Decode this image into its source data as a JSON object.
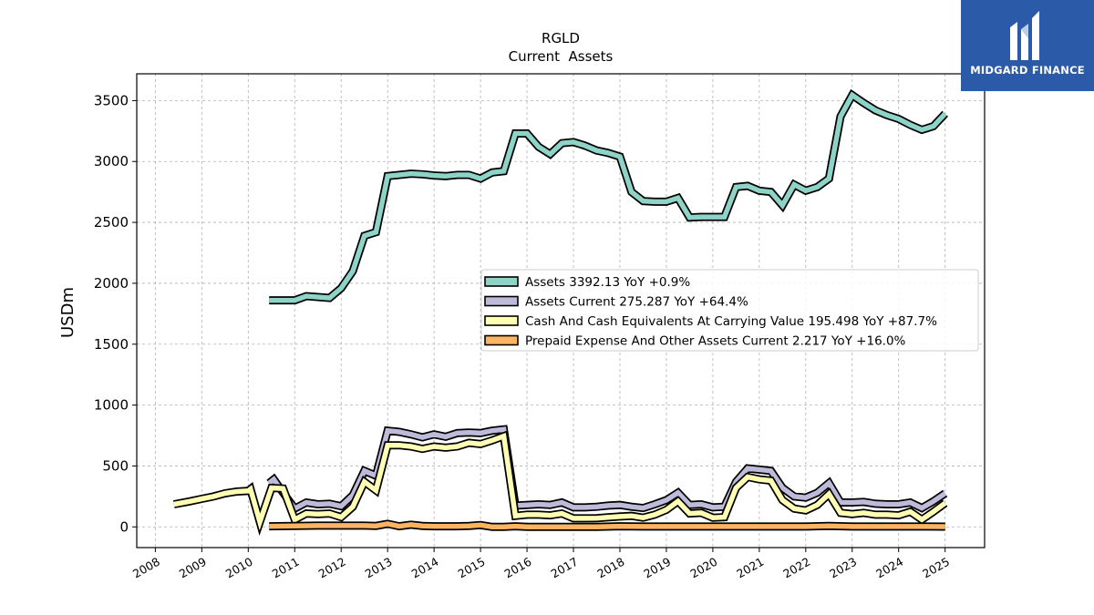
{
  "chart_data": {
    "type": "line",
    "title": "RGLD",
    "subtitle": "Current  Assets",
    "ylabel": "USDm",
    "xlabel": "",
    "ylim": [
      -170,
      3720
    ],
    "yticks": [
      0,
      500,
      1000,
      1500,
      2000,
      2500,
      3000,
      3500
    ],
    "xlim": [
      2007.6,
      2025.85
    ],
    "xticks": [
      2008,
      2009,
      2010,
      2011,
      2012,
      2013,
      2014,
      2015,
      2016,
      2017,
      2018,
      2019,
      2020,
      2021,
      2022,
      2023,
      2024,
      2025
    ],
    "grid": true,
    "legend_position": "center-right",
    "series": [
      {
        "name": "Assets",
        "legend": "Assets  3392.13 YoY +0.9%",
        "color": "#8dd3c7",
        "points": [
          [
            2010.45,
            1860
          ],
          [
            2011.0,
            1860
          ],
          [
            2011.25,
            1895
          ],
          [
            2011.75,
            1880
          ],
          [
            2012.0,
            1960
          ],
          [
            2012.25,
            2100
          ],
          [
            2012.5,
            2390
          ],
          [
            2012.75,
            2420
          ],
          [
            2013.0,
            2880
          ],
          [
            2013.25,
            2890
          ],
          [
            2013.5,
            2900
          ],
          [
            2013.75,
            2895
          ],
          [
            2014.0,
            2885
          ],
          [
            2014.25,
            2880
          ],
          [
            2014.5,
            2890
          ],
          [
            2014.75,
            2890
          ],
          [
            2015.0,
            2860
          ],
          [
            2015.25,
            2910
          ],
          [
            2015.5,
            2920
          ],
          [
            2015.75,
            3230
          ],
          [
            2016.0,
            3230
          ],
          [
            2016.25,
            3120
          ],
          [
            2016.5,
            3060
          ],
          [
            2016.75,
            3150
          ],
          [
            2017.0,
            3160
          ],
          [
            2017.25,
            3130
          ],
          [
            2017.5,
            3090
          ],
          [
            2017.75,
            3070
          ],
          [
            2018.0,
            3040
          ],
          [
            2018.25,
            2750
          ],
          [
            2018.5,
            2675
          ],
          [
            2018.75,
            2670
          ],
          [
            2019.0,
            2670
          ],
          [
            2019.25,
            2700
          ],
          [
            2019.5,
            2540
          ],
          [
            2019.75,
            2545
          ],
          [
            2020.0,
            2545
          ],
          [
            2020.25,
            2545
          ],
          [
            2020.5,
            2790
          ],
          [
            2020.75,
            2800
          ],
          [
            2021.0,
            2760
          ],
          [
            2021.25,
            2750
          ],
          [
            2021.5,
            2640
          ],
          [
            2021.75,
            2810
          ],
          [
            2022.0,
            2760
          ],
          [
            2022.25,
            2790
          ],
          [
            2022.5,
            2860
          ],
          [
            2022.75,
            3370
          ],
          [
            2023.0,
            3545
          ],
          [
            2023.25,
            3480
          ],
          [
            2023.5,
            3420
          ],
          [
            2023.75,
            3380
          ],
          [
            2024.0,
            3350
          ],
          [
            2024.25,
            3300
          ],
          [
            2024.5,
            3260
          ],
          [
            2024.75,
            3290
          ],
          [
            2025.0,
            3392
          ]
        ]
      },
      {
        "name": "Assets Current",
        "legend": "Assets Current  275.287 YoY +64.4%",
        "color": "#bebada",
        "points": [
          [
            2010.45,
            360
          ],
          [
            2010.55,
            390
          ],
          [
            2010.75,
            280
          ],
          [
            2011.0,
            150
          ],
          [
            2011.25,
            200
          ],
          [
            2011.5,
            185
          ],
          [
            2011.75,
            190
          ],
          [
            2012.0,
            170
          ],
          [
            2012.25,
            260
          ],
          [
            2012.5,
            460
          ],
          [
            2012.75,
            420
          ],
          [
            2013.0,
            790
          ],
          [
            2013.25,
            780
          ],
          [
            2013.5,
            760
          ],
          [
            2013.75,
            735
          ],
          [
            2014.0,
            760
          ],
          [
            2014.25,
            740
          ],
          [
            2014.5,
            770
          ],
          [
            2014.75,
            775
          ],
          [
            2015.0,
            770
          ],
          [
            2015.25,
            790
          ],
          [
            2015.5,
            800
          ],
          [
            2015.75,
            175
          ],
          [
            2016.0,
            180
          ],
          [
            2016.25,
            185
          ],
          [
            2016.5,
            180
          ],
          [
            2016.75,
            200
          ],
          [
            2017.0,
            160
          ],
          [
            2017.25,
            160
          ],
          [
            2017.5,
            165
          ],
          [
            2017.75,
            175
          ],
          [
            2018.0,
            180
          ],
          [
            2018.25,
            165
          ],
          [
            2018.5,
            155
          ],
          [
            2018.75,
            185
          ],
          [
            2019.0,
            220
          ],
          [
            2019.25,
            280
          ],
          [
            2019.5,
            180
          ],
          [
            2019.75,
            185
          ],
          [
            2020.0,
            160
          ],
          [
            2020.25,
            165
          ],
          [
            2020.5,
            370
          ],
          [
            2020.75,
            480
          ],
          [
            2021.0,
            470
          ],
          [
            2021.25,
            460
          ],
          [
            2021.5,
            320
          ],
          [
            2021.75,
            250
          ],
          [
            2022.0,
            240
          ],
          [
            2022.25,
            280
          ],
          [
            2022.5,
            360
          ],
          [
            2022.75,
            200
          ],
          [
            2023.0,
            200
          ],
          [
            2023.25,
            205
          ],
          [
            2023.5,
            190
          ],
          [
            2023.75,
            185
          ],
          [
            2024.0,
            185
          ],
          [
            2024.25,
            200
          ],
          [
            2024.5,
            155
          ],
          [
            2024.75,
            210
          ],
          [
            2025.0,
            275
          ]
        ]
      },
      {
        "name": "Cash And Cash Equivalents At Carrying Value",
        "legend": "Cash And Cash Equivalents At Carrying Value  195.498 YoY +87.7%",
        "color": "#ffffb3",
        "points": [
          [
            2008.4,
            185
          ],
          [
            2008.75,
            210
          ],
          [
            2009.0,
            230
          ],
          [
            2009.25,
            250
          ],
          [
            2009.5,
            275
          ],
          [
            2009.75,
            290
          ],
          [
            2010.0,
            295
          ],
          [
            2010.05,
            310
          ],
          [
            2010.25,
            40
          ],
          [
            2010.5,
            320
          ],
          [
            2010.75,
            315
          ],
          [
            2011.0,
            60
          ],
          [
            2011.25,
            110
          ],
          [
            2011.5,
            105
          ],
          [
            2011.75,
            110
          ],
          [
            2012.0,
            80
          ],
          [
            2012.25,
            165
          ],
          [
            2012.5,
            370
          ],
          [
            2012.75,
            300
          ],
          [
            2013.0,
            670
          ],
          [
            2013.25,
            670
          ],
          [
            2013.5,
            660
          ],
          [
            2013.75,
            640
          ],
          [
            2014.0,
            660
          ],
          [
            2014.25,
            650
          ],
          [
            2014.5,
            660
          ],
          [
            2014.75,
            690
          ],
          [
            2015.0,
            680
          ],
          [
            2015.25,
            710
          ],
          [
            2015.5,
            745
          ],
          [
            2015.75,
            90
          ],
          [
            2016.0,
            100
          ],
          [
            2016.25,
            100
          ],
          [
            2016.5,
            95
          ],
          [
            2016.75,
            110
          ],
          [
            2017.0,
            70
          ],
          [
            2017.25,
            70
          ],
          [
            2017.5,
            72
          ],
          [
            2017.75,
            78
          ],
          [
            2018.0,
            85
          ],
          [
            2018.25,
            90
          ],
          [
            2018.5,
            75
          ],
          [
            2018.75,
            100
          ],
          [
            2019.0,
            140
          ],
          [
            2019.25,
            210
          ],
          [
            2019.5,
            110
          ],
          [
            2019.75,
            115
          ],
          [
            2020.0,
            75
          ],
          [
            2020.25,
            80
          ],
          [
            2020.5,
            320
          ],
          [
            2020.75,
            410
          ],
          [
            2021.0,
            390
          ],
          [
            2021.25,
            380
          ],
          [
            2021.5,
            220
          ],
          [
            2021.75,
            150
          ],
          [
            2022.0,
            135
          ],
          [
            2022.25,
            180
          ],
          [
            2022.5,
            270
          ],
          [
            2022.75,
            115
          ],
          [
            2023.0,
            105
          ],
          [
            2023.25,
            115
          ],
          [
            2023.5,
            100
          ],
          [
            2023.75,
            100
          ],
          [
            2024.0,
            95
          ],
          [
            2024.25,
            125
          ],
          [
            2024.5,
            60
          ],
          [
            2024.75,
            125
          ],
          [
            2025.0,
            195
          ]
        ]
      },
      {
        "name": "Prepaid Expense And Other Assets Current",
        "legend": "Prepaid Expense And Other Assets Current  2.217 YoY +16.0%",
        "color": "#fdb462",
        "points": [
          [
            2010.45,
            5
          ],
          [
            2011.0,
            8
          ],
          [
            2011.5,
            10
          ],
          [
            2012.0,
            10
          ],
          [
            2012.5,
            10
          ],
          [
            2012.75,
            8
          ],
          [
            2013.0,
            25
          ],
          [
            2013.25,
            5
          ],
          [
            2013.5,
            18
          ],
          [
            2013.75,
            8
          ],
          [
            2014.0,
            5
          ],
          [
            2014.25,
            5
          ],
          [
            2014.5,
            5
          ],
          [
            2014.75,
            8
          ],
          [
            2015.0,
            15
          ],
          [
            2015.25,
            0
          ],
          [
            2015.5,
            0
          ],
          [
            2015.75,
            5
          ],
          [
            2016.0,
            0
          ],
          [
            2016.5,
            0
          ],
          [
            2017.0,
            0
          ],
          [
            2017.5,
            0
          ],
          [
            2018.0,
            5
          ],
          [
            2018.5,
            3
          ],
          [
            2019.0,
            3
          ],
          [
            2019.5,
            3
          ],
          [
            2020.0,
            3
          ],
          [
            2020.5,
            3
          ],
          [
            2021.0,
            3
          ],
          [
            2021.5,
            3
          ],
          [
            2022.0,
            3
          ],
          [
            2022.5,
            8
          ],
          [
            2023.0,
            3
          ],
          [
            2023.5,
            3
          ],
          [
            2024.0,
            3
          ],
          [
            2024.5,
            3
          ],
          [
            2025.0,
            2
          ]
        ]
      }
    ]
  },
  "logo": {
    "text": "MIDGARD FINANCE",
    "name": "midgard-finance-logo"
  }
}
